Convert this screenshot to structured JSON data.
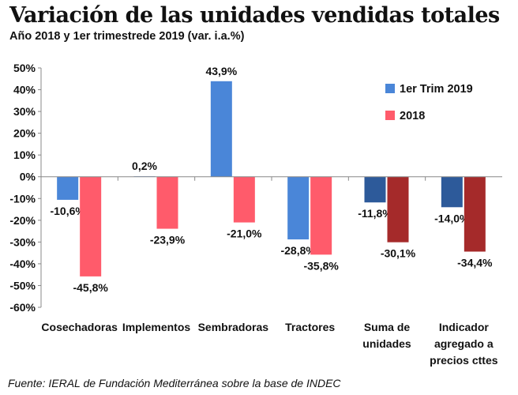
{
  "header": {
    "title": "Variación de las unidades vendidas totales",
    "subtitle": "Año 2018 y 1er trimestrede 2019 (var. i.a.%)"
  },
  "footer": {
    "source": "Fuente: IERAL de Fundación Mediterránea sobre la base de INDEC"
  },
  "colors": {
    "trim_light": "#4a86d8",
    "trim_dark": "#2d5a9a",
    "y2018_light": "#ff5b6b",
    "y2018_dark": "#a52a2a"
  },
  "chart_data": {
    "type": "bar",
    "title": "Variación de las unidades vendidas totales",
    "subtitle": "Año 2018 y 1er trimestrede 2019 (var. i.a.%)",
    "xlabel": "",
    "ylabel": "",
    "ylim": [
      -60,
      50
    ],
    "yticks": [
      50,
      40,
      30,
      20,
      10,
      0,
      -10,
      -20,
      -30,
      -40,
      -50,
      -60
    ],
    "ytick_labels": [
      "50%",
      "40%",
      "30%",
      "20%",
      "10%",
      "0%",
      "-10%",
      "-20%",
      "-30%",
      "-40%",
      "-50%",
      "-60%"
    ],
    "grid": false,
    "legend_position": "top-right",
    "categories": [
      [
        "Cosechadoras"
      ],
      [
        "Implementos"
      ],
      [
        "Sembradoras"
      ],
      [
        "Tractores"
      ],
      [
        "Suma de",
        "unidades"
      ],
      [
        "Indicador",
        "agregado a",
        "precios cttes"
      ]
    ],
    "series": [
      {
        "name": "1er Trim 2019",
        "values": [
          -10.6,
          0.2,
          43.9,
          -28.8,
          -11.8,
          -14.0
        ],
        "labels": [
          "-10,6%",
          "0,2%",
          "43,9%",
          "-28,8%",
          "-11,8%",
          "-14,0%"
        ]
      },
      {
        "name": "2018",
        "values": [
          -45.8,
          -23.9,
          -21.0,
          -35.8,
          -30.1,
          -34.4
        ],
        "labels": [
          "-45,8%",
          "-23,9%",
          "-21,0%",
          "-35,8%",
          "-30,1%",
          "-34,4%"
        ]
      }
    ]
  }
}
